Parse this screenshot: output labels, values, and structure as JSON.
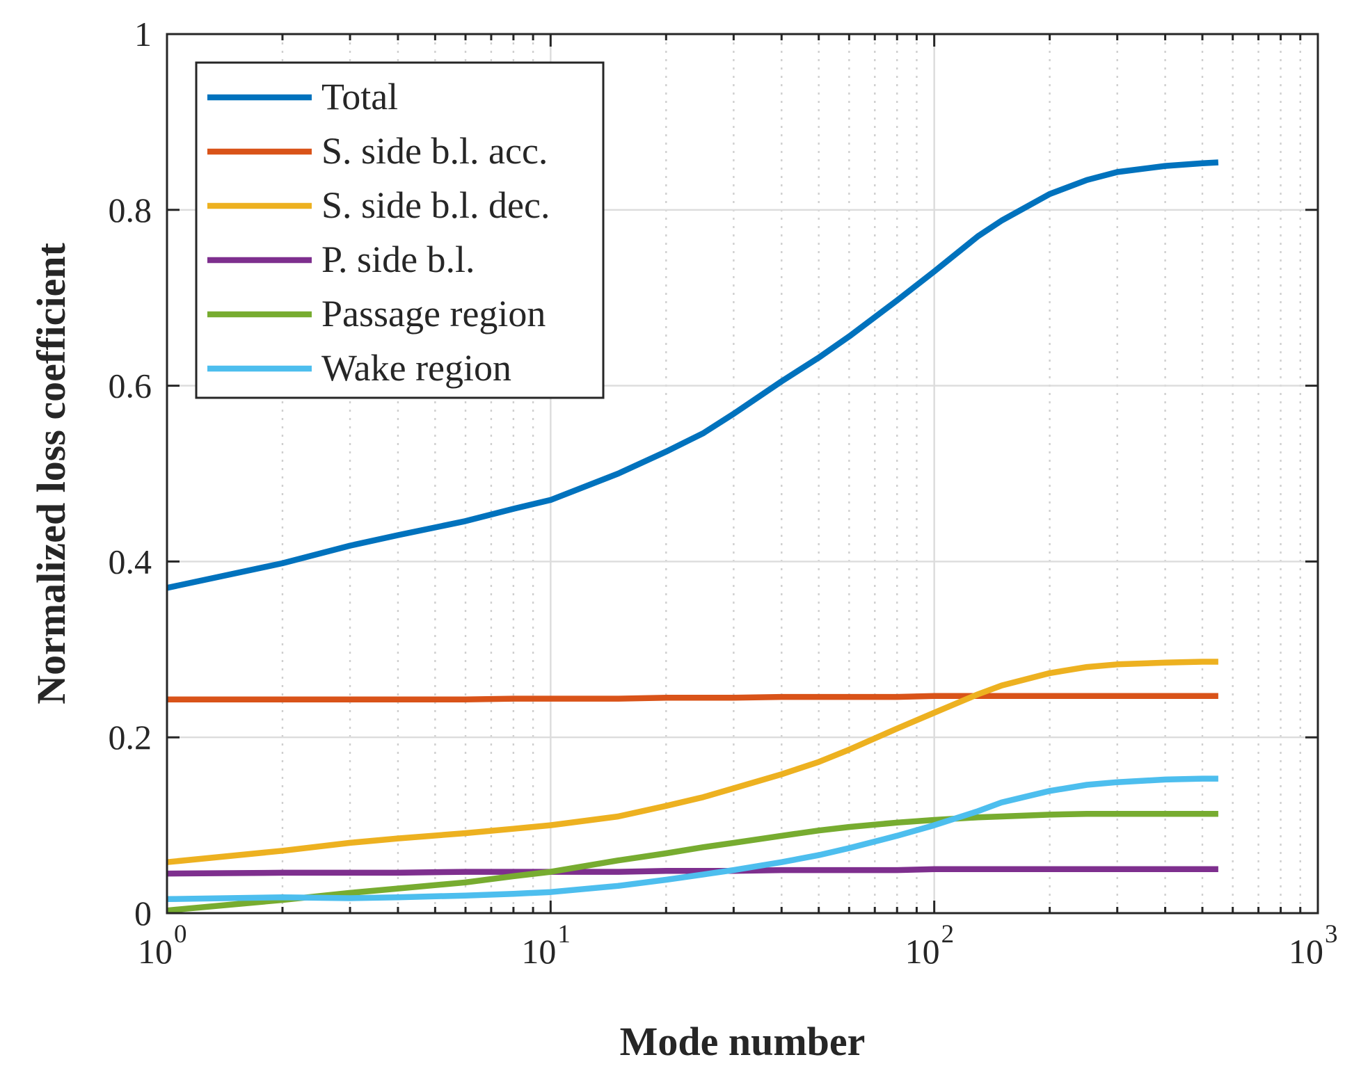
{
  "chart_data": {
    "type": "line",
    "title": "",
    "xlabel": "Mode number",
    "ylabel": "Normalized loss coefficient",
    "xscale": "log",
    "xlim": [
      1,
      1000
    ],
    "ylim": [
      0,
      1
    ],
    "x_ticks": [
      {
        "value": 1,
        "base": "10",
        "exp": "0"
      },
      {
        "value": 10,
        "base": "10",
        "exp": "1"
      },
      {
        "value": 100,
        "base": "10",
        "exp": "2"
      },
      {
        "value": 1000,
        "base": "10",
        "exp": "3"
      }
    ],
    "y_ticks": [
      {
        "value": 0,
        "label": "0"
      },
      {
        "value": 0.2,
        "label": "0.2"
      },
      {
        "value": 0.4,
        "label": "0.4"
      },
      {
        "value": 0.6,
        "label": "0.6"
      },
      {
        "value": 0.8,
        "label": "0.8"
      },
      {
        "value": 1,
        "label": "1"
      }
    ],
    "grid": true,
    "legend_position": "top-left",
    "x": [
      1,
      2,
      3,
      4,
      6,
      8,
      10,
      15,
      20,
      25,
      30,
      40,
      50,
      60,
      80,
      100,
      130,
      150,
      200,
      250,
      300,
      400,
      500,
      550
    ],
    "series": [
      {
        "name": "Total",
        "color": "#0072BD",
        "values": [
          0.37,
          0.398,
          0.418,
          0.43,
          0.446,
          0.46,
          0.47,
          0.5,
          0.525,
          0.546,
          0.568,
          0.605,
          0.632,
          0.656,
          0.697,
          0.73,
          0.77,
          0.788,
          0.818,
          0.834,
          0.843,
          0.85,
          0.853,
          0.854
        ]
      },
      {
        "name": "S. side b.l. acc.",
        "color": "#D95319",
        "values": [
          0.243,
          0.243,
          0.243,
          0.243,
          0.243,
          0.244,
          0.244,
          0.244,
          0.245,
          0.245,
          0.245,
          0.246,
          0.246,
          0.246,
          0.246,
          0.247,
          0.247,
          0.247,
          0.247,
          0.247,
          0.247,
          0.247,
          0.247,
          0.247
        ]
      },
      {
        "name": "S. side b.l. dec.",
        "color": "#EDB120",
        "values": [
          0.058,
          0.071,
          0.08,
          0.085,
          0.091,
          0.096,
          0.1,
          0.11,
          0.122,
          0.132,
          0.142,
          0.158,
          0.172,
          0.186,
          0.21,
          0.228,
          0.249,
          0.259,
          0.273,
          0.28,
          0.283,
          0.285,
          0.286,
          0.286
        ]
      },
      {
        "name": "P. side b.l.",
        "color": "#7E2F8E",
        "values": [
          0.045,
          0.046,
          0.046,
          0.046,
          0.047,
          0.047,
          0.047,
          0.047,
          0.048,
          0.048,
          0.048,
          0.049,
          0.049,
          0.049,
          0.049,
          0.05,
          0.05,
          0.05,
          0.05,
          0.05,
          0.05,
          0.05,
          0.05,
          0.05
        ]
      },
      {
        "name": "Passage region",
        "color": "#77AC30",
        "values": [
          0.003,
          0.015,
          0.023,
          0.028,
          0.035,
          0.042,
          0.047,
          0.06,
          0.068,
          0.075,
          0.08,
          0.088,
          0.094,
          0.098,
          0.103,
          0.106,
          0.109,
          0.11,
          0.112,
          0.113,
          0.113,
          0.113,
          0.113,
          0.113
        ]
      },
      {
        "name": "Wake region",
        "color": "#4DBEEE",
        "values": [
          0.016,
          0.018,
          0.017,
          0.018,
          0.02,
          0.022,
          0.024,
          0.031,
          0.038,
          0.044,
          0.049,
          0.058,
          0.066,
          0.074,
          0.088,
          0.1,
          0.116,
          0.126,
          0.139,
          0.146,
          0.149,
          0.152,
          0.153,
          0.153
        ]
      }
    ]
  }
}
